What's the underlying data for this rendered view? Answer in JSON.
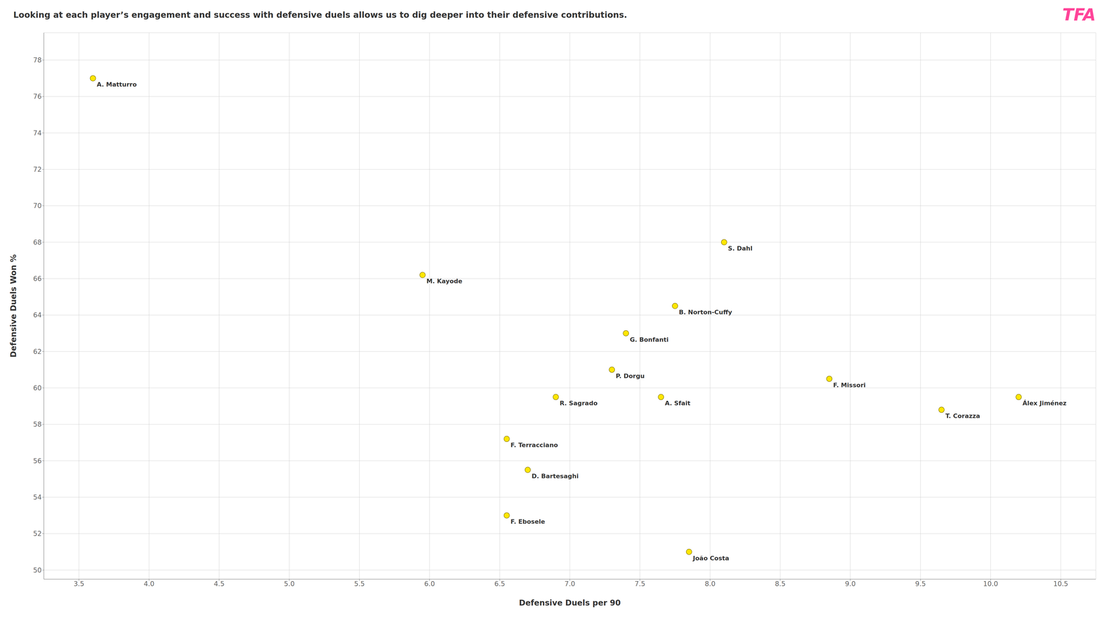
{
  "chart_data": {
    "type": "scatter",
    "title": "Looking at each player’s engagement and success with defensive duels allows us to dig deeper into their defensive contributions.",
    "x": [
      3.6,
      5.95,
      8.1,
      7.75,
      7.4,
      7.3,
      6.9,
      7.65,
      8.85,
      9.65,
      10.2,
      6.55,
      6.7,
      6.55,
      7.85
    ],
    "values": [
      77.0,
      66.2,
      68.0,
      64.5,
      63.0,
      61.0,
      59.5,
      59.5,
      60.5,
      58.8,
      59.5,
      57.2,
      55.5,
      53.0,
      51.0
    ],
    "labels": [
      "A. Matturro",
      "M. Kayode",
      "S. Dahl",
      "B. Norton-Cuffy",
      "G. Bonfanti",
      "P. Dorgu",
      "R. Sagrado",
      "A. Sfait",
      "F. Missori",
      "T. Corazza",
      "Álex Jiménez",
      "F. Terracciano",
      "D. Bartesaghi",
      "F. Ebosele",
      "João Costa"
    ],
    "color": "#FFE600",
    "xlabel": "Defensive Duels per 90",
    "ylabel": "Defensive Duels Won %",
    "xlim": [
      3.25,
      10.75
    ],
    "ylim": [
      49.5,
      79.5
    ],
    "xticks": [
      3.5,
      {
        "value": 4,
        "label": "4.0"
      },
      4.5,
      {
        "value": 5,
        "label": "5.0"
      },
      5.5,
      {
        "value": 6,
        "label": "6.0"
      },
      6.5,
      {
        "value": 7,
        "label": "7.0"
      },
      7.5,
      {
        "value": 8,
        "label": "8.0"
      },
      8.5,
      {
        "value": 9,
        "label": "9.0"
      },
      9.5,
      {
        "value": 10,
        "label": "10.0"
      },
      10.5
    ],
    "yticks": [
      50,
      52,
      54,
      56,
      58,
      60,
      62,
      64,
      66,
      68,
      70,
      72,
      74,
      76,
      78
    ],
    "grid": true,
    "annotations": [
      {
        "text": "TFA",
        "color": "#FF4499"
      }
    ]
  }
}
